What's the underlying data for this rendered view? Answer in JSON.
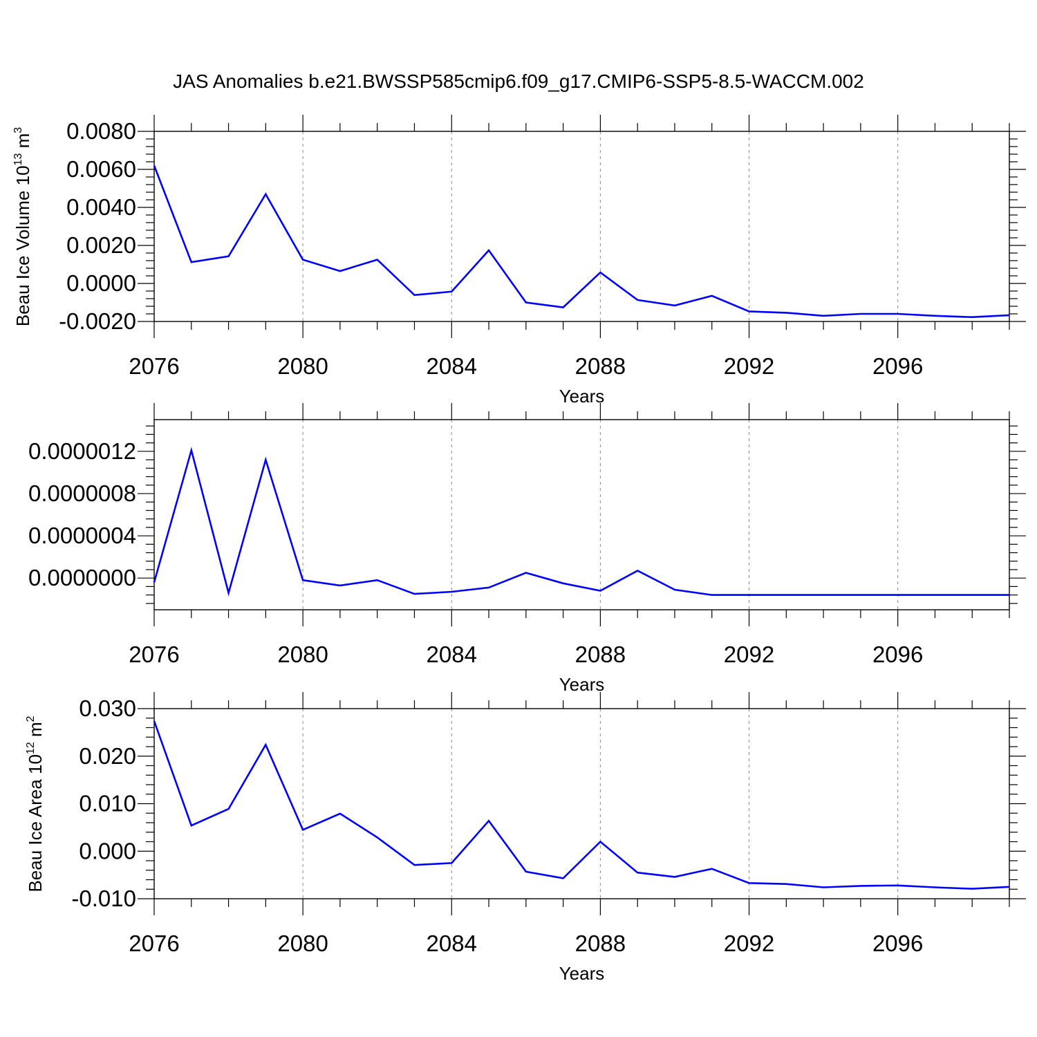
{
  "title": "JAS Anomalies b.e21.BWSSP585cmip6.f09_g17.CMIP6-SSP5-8.5-WACCM.002",
  "colors": {
    "line": "#0000ff",
    "axis": "#000000",
    "grid": "#888888"
  },
  "chart_data": [
    {
      "type": "line",
      "name": "volume",
      "ylabel": {
        "main": "Beau Ice Volume 10",
        "sup": "13",
        "unit": " m",
        "unit_sup": "3"
      },
      "xlabel": "Years",
      "xlim": [
        2076,
        2099
      ],
      "ylim": [
        -0.002,
        0.008
      ],
      "x_ticks": [
        2076,
        2080,
        2084,
        2088,
        2092,
        2096
      ],
      "x_tick_labels": [
        "2076",
        "2080",
        "2084",
        "2088",
        "2092",
        "2096"
      ],
      "y_ticks": [
        -0.002,
        0.0,
        0.002,
        0.004,
        0.006,
        0.008
      ],
      "y_tick_labels": [
        "-0.0020",
        "0.0000",
        "0.0020",
        "0.0040",
        "0.0060",
        "0.0080"
      ],
      "grid": "vertical-dashed",
      "x": [
        2076,
        2077,
        2078,
        2079,
        2080,
        2081,
        2082,
        2083,
        2084,
        2085,
        2086,
        2087,
        2088,
        2089,
        2090,
        2091,
        2092,
        2093,
        2094,
        2095,
        2096,
        2097,
        2098,
        2099
      ],
      "values": [
        0.0062,
        0.00112,
        0.00143,
        0.0047,
        0.00125,
        0.00065,
        0.00125,
        -0.00061,
        -0.00043,
        0.00174,
        -0.001,
        -0.00126,
        0.00058,
        -0.00087,
        -0.00116,
        -0.00065,
        -0.00147,
        -0.00154,
        -0.0017,
        -0.0016,
        -0.0016,
        -0.0017,
        -0.00177,
        -0.00167
      ]
    },
    {
      "type": "line",
      "name": "middle",
      "ylabel": null,
      "xlabel": "Years",
      "xlim": [
        2076,
        2099
      ],
      "ylim": [
        -3e-07,
        1.5e-06
      ],
      "x_ticks": [
        2076,
        2080,
        2084,
        2088,
        2092,
        2096
      ],
      "x_tick_labels": [
        "2076",
        "2080",
        "2084",
        "2088",
        "2092",
        "2096"
      ],
      "y_ticks": [
        0.0,
        4e-07,
        8e-07,
        1.2e-06
      ],
      "y_tick_labels": [
        "0.0000000",
        "0.0000004",
        "0.0000008",
        "0.0000012"
      ],
      "grid": "vertical-dashed",
      "x": [
        2076,
        2077,
        2078,
        2079,
        2080,
        2081,
        2082,
        2083,
        2084,
        2085,
        2086,
        2087,
        2088,
        2089,
        2090,
        2091,
        2092,
        2093,
        2094,
        2095,
        2096,
        2097,
        2098,
        2099
      ],
      "values": [
        -4e-08,
        1.21e-06,
        -1.4e-07,
        1.12e-06,
        -2e-08,
        -7e-08,
        -2e-08,
        -1.5e-07,
        -1.3e-07,
        -9e-08,
        5e-08,
        -5e-08,
        -1.2e-07,
        7e-08,
        -1.1e-07,
        -1.6e-07,
        -1.6e-07,
        -1.6e-07,
        -1.6e-07,
        -1.6e-07,
        -1.6e-07,
        -1.6e-07,
        -1.6e-07,
        -1.6e-07
      ]
    },
    {
      "type": "line",
      "name": "area",
      "ylabel": {
        "main": "Beau Ice Area 10",
        "sup": "12",
        "unit": " m",
        "unit_sup": "2"
      },
      "xlabel": "Years",
      "xlim": [
        2076,
        2099
      ],
      "ylim": [
        -0.01,
        0.03
      ],
      "x_ticks": [
        2076,
        2080,
        2084,
        2088,
        2092,
        2096
      ],
      "x_tick_labels": [
        "2076",
        "2080",
        "2084",
        "2088",
        "2092",
        "2096"
      ],
      "y_ticks": [
        -0.01,
        0.0,
        0.01,
        0.02,
        0.03
      ],
      "y_tick_labels": [
        "-0.010",
        "0.000",
        "0.010",
        "0.020",
        "0.030"
      ],
      "grid": "vertical-dashed",
      "x": [
        2076,
        2077,
        2078,
        2079,
        2080,
        2081,
        2082,
        2083,
        2084,
        2085,
        2086,
        2087,
        2088,
        2089,
        2090,
        2091,
        2092,
        2093,
        2094,
        2095,
        2096,
        2097,
        2098,
        2099
      ],
      "values": [
        0.0274,
        0.0054,
        0.0089,
        0.0224,
        0.0045,
        0.0079,
        0.0029,
        -0.0029,
        -0.0025,
        0.0064,
        -0.0043,
        -0.0057,
        0.002,
        -0.0045,
        -0.0054,
        -0.0037,
        -0.0067,
        -0.0069,
        -0.0076,
        -0.0073,
        -0.0072,
        -0.0076,
        -0.0079,
        -0.0075
      ]
    }
  ]
}
